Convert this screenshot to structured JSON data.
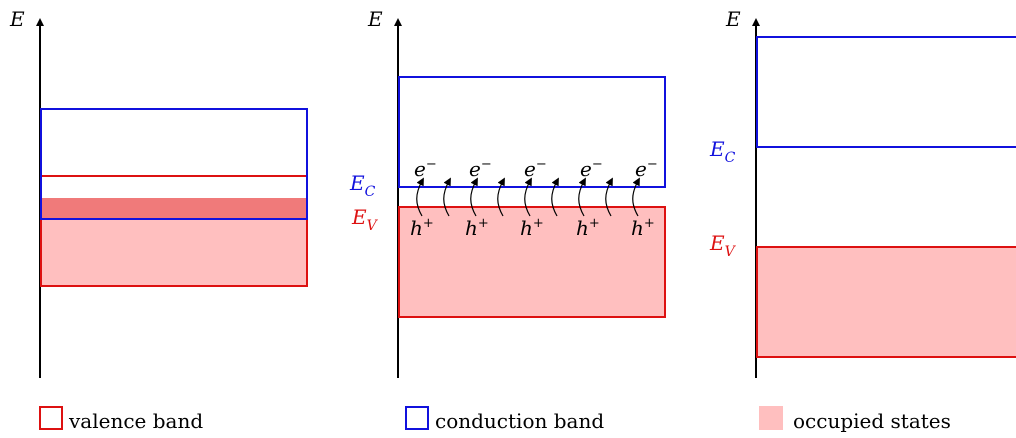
{
  "colors": {
    "valence": "#dd1111",
    "conduction": "#1111dd",
    "occupied_fill": "#ffbfbf",
    "overlap_fill": "#f07a7a",
    "axis": "#000000"
  },
  "axis_label": "E",
  "panel2": {
    "ec_label": "E",
    "ec_sub": "C",
    "ev_label": "E",
    "ev_sub": "V",
    "electron": "e",
    "electron_sup": "−",
    "hole": "h",
    "hole_sup": "+"
  },
  "panel3": {
    "ec_label": "E",
    "ec_sub": "C",
    "ev_label": "E",
    "ev_sub": "V"
  },
  "legend": [
    {
      "label": "valence band",
      "kind": "valence"
    },
    {
      "label": "conduction band",
      "kind": "conduction"
    },
    {
      "label": "occupied states",
      "kind": "occupied"
    }
  ]
}
